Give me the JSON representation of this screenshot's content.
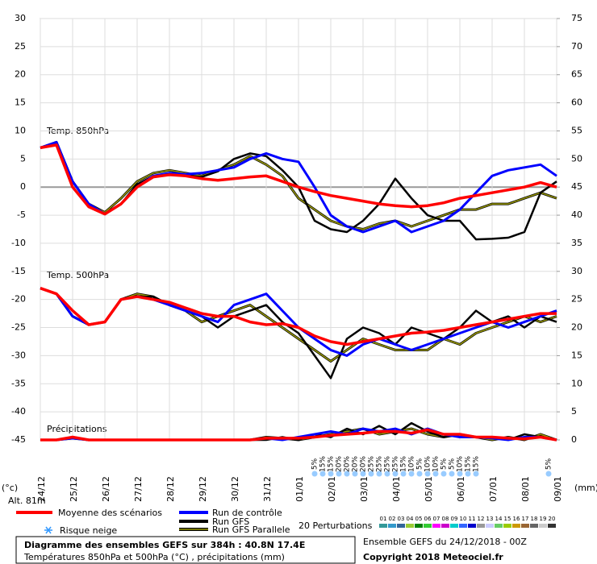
{
  "chart_data": {
    "type": "line",
    "ylim": [
      -45,
      30
    ],
    "yticks": [
      30,
      25,
      20,
      15,
      10,
      5,
      0,
      -5,
      -10,
      -15,
      -20,
      -25,
      -30,
      -35,
      -40,
      -45
    ],
    "y2lim": [
      0,
      75
    ],
    "y2ticks": [
      75,
      70,
      65,
      60,
      55,
      50,
      45,
      40,
      35,
      30,
      25,
      20,
      15,
      10,
      5,
      0
    ],
    "xlim": [
      0,
      384
    ],
    "xticks": [
      {
        "value": 0,
        "label": "24/12"
      },
      {
        "value": 24,
        "label": "25/12"
      },
      {
        "value": 48,
        "label": "26/12"
      },
      {
        "value": 72,
        "label": "27/12"
      },
      {
        "value": 96,
        "label": "28/12"
      },
      {
        "value": 120,
        "label": "29/12"
      },
      {
        "value": 144,
        "label": "30/12"
      },
      {
        "value": 168,
        "label": "31/12"
      },
      {
        "value": 192,
        "label": "01/01"
      },
      {
        "value": 216,
        "label": "02/01"
      },
      {
        "value": 240,
        "label": "03/01"
      },
      {
        "value": 264,
        "label": "04/01"
      },
      {
        "value": 288,
        "label": "05/01"
      },
      {
        "value": 312,
        "label": "06/01"
      },
      {
        "value": 336,
        "label": "07/01"
      },
      {
        "value": 360,
        "label": "08/01"
      },
      {
        "value": 384,
        "label": "09/01"
      }
    ],
    "y_unit": "(°c)",
    "y2_unit": "(mm)",
    "altitude": "Alt. 81m",
    "grid": true,
    "annotations": [
      "Temp. 850hPa",
      "Temp. 500hPa",
      "Précipitations"
    ],
    "x": [
      0,
      12,
      24,
      36,
      48,
      60,
      72,
      84,
      96,
      108,
      120,
      132,
      144,
      156,
      168,
      180,
      192,
      204,
      216,
      228,
      240,
      252,
      264,
      276,
      288,
      300,
      312,
      324,
      336,
      348,
      360,
      372,
      384
    ],
    "series": [
      {
        "name": "Run GFS Parallele",
        "color": "#999900",
        "t850": [
          7,
          8,
          1,
          -3,
          -4.5,
          -2,
          1,
          2.5,
          3,
          2.5,
          2,
          3,
          4,
          5.5,
          4,
          2,
          -2,
          -4,
          -6,
          -7,
          -7.5,
          -6.5,
          -6,
          -7,
          -6,
          -5,
          -4,
          -4,
          -3,
          -3,
          -2,
          -1,
          -2
        ],
        "t500": [
          -18,
          -19,
          -23,
          -24.5,
          -24,
          -20,
          -19,
          -19.5,
          -21,
          -22,
          -24,
          -23,
          -22,
          -21,
          -23,
          -25,
          -27,
          -29,
          -31,
          -29,
          -27,
          -28,
          -29,
          -29,
          -29,
          -27,
          -28,
          -26,
          -25,
          -24,
          -23,
          -24,
          -23
        ],
        "precip": [
          0,
          0,
          0.3,
          0,
          0,
          0,
          0,
          0,
          0,
          0,
          0,
          0,
          0,
          0,
          0.5,
          0.3,
          0,
          0.5,
          1,
          1.5,
          2,
          1,
          1.5,
          2,
          1,
          0.5,
          1,
          0.5,
          0,
          0.5,
          0,
          1,
          0
        ]
      },
      {
        "name": "Run GFS",
        "color": "#000000",
        "t850": [
          7,
          8,
          0,
          -3.5,
          -4.7,
          -3,
          0.5,
          2,
          2.3,
          2,
          1.8,
          2.8,
          5,
          6,
          5.5,
          3,
          0,
          -6,
          -7.5,
          -8,
          -6,
          -3,
          1.5,
          -2,
          -5,
          -6,
          -6,
          -9.3,
          -9.2,
          -9,
          -8,
          -1,
          1
        ],
        "t500": [
          -18,
          -19,
          -23,
          -24.5,
          -24,
          -20,
          -19.5,
          -19.5,
          -21,
          -22,
          -23,
          -25,
          -23,
          -22,
          -21,
          -24,
          -26,
          -30,
          -34,
          -27,
          -25,
          -26,
          -28,
          -25,
          -26,
          -27,
          -25,
          -22,
          -24,
          -23,
          -25,
          -23,
          -24
        ],
        "precip": [
          0,
          0,
          0.5,
          0,
          0,
          0,
          0,
          0,
          0,
          0,
          0,
          0,
          0,
          0,
          0,
          0.5,
          0,
          1,
          0.5,
          2,
          1,
          2.5,
          1,
          3,
          1.5,
          0.5,
          1,
          0.5,
          0.5,
          0,
          1,
          0.5,
          0
        ]
      },
      {
        "name": "Run de contrôle",
        "color": "#0000ff",
        "t850": [
          7,
          8,
          1,
          -3,
          -4.8,
          -3,
          0,
          2,
          2.5,
          2.3,
          2.5,
          3,
          3.5,
          5,
          6,
          5,
          4.5,
          0,
          -5,
          -7,
          -8,
          -7,
          -6,
          -8,
          -7,
          -6,
          -4,
          -1,
          2,
          3,
          3.5,
          4,
          2
        ],
        "t500": [
          -18,
          -19,
          -23,
          -24.5,
          -24,
          -20,
          -19.5,
          -20,
          -21,
          -22,
          -23,
          -24,
          -21,
          -20,
          -19,
          -22,
          -25,
          -27,
          -29,
          -30,
          -28,
          -27,
          -28,
          -29,
          -28,
          -27,
          -26,
          -25,
          -24,
          -25,
          -24,
          -23,
          -22
        ],
        "precip": [
          0,
          0,
          0.3,
          0,
          0,
          0,
          0,
          0,
          0,
          0,
          0,
          0,
          0,
          0,
          0.3,
          0,
          0.5,
          1,
          1.5,
          1,
          2,
          1.5,
          2,
          1,
          2,
          1,
          0.5,
          0.5,
          0.3,
          0,
          0.5,
          0.5,
          0
        ]
      },
      {
        "name": "Moyenne des scénarios",
        "color": "#ff0000",
        "t850": [
          7,
          7.5,
          0,
          -3.5,
          -4.8,
          -3,
          0,
          1.8,
          2.2,
          2,
          1.5,
          1.2,
          1.5,
          1.8,
          2,
          1,
          0,
          -0.8,
          -1.5,
          -2,
          -2.5,
          -3,
          -3.3,
          -3.5,
          -3.3,
          -2.8,
          -2,
          -1.5,
          -1,
          -0.5,
          0,
          0.8,
          0
        ],
        "t500": [
          -18,
          -19,
          -22,
          -24.5,
          -24,
          -20,
          -19.5,
          -20,
          -20.5,
          -21.5,
          -22.5,
          -23,
          -23,
          -24,
          -24.5,
          -24.3,
          -25,
          -26.5,
          -27.5,
          -28,
          -27.5,
          -27,
          -26.5,
          -26,
          -25.8,
          -25.5,
          -25,
          -24.5,
          -24,
          -23.5,
          -23,
          -22.5,
          -22.5
        ],
        "precip": [
          0,
          0,
          0.5,
          0,
          0,
          0,
          0,
          0,
          0,
          0,
          0,
          0,
          0,
          0,
          0.3,
          0.3,
          0.3,
          0.5,
          0.8,
          1,
          1.2,
          1.5,
          1.5,
          1.2,
          1.8,
          1,
          1,
          0.5,
          0.5,
          0.3,
          0.2,
          0.5,
          0
        ]
      }
    ],
    "legend_order": [
      3,
      2,
      1,
      0
    ],
    "snow_risk": {
      "name": "Risque neige",
      "x": [
        204,
        210,
        216,
        222,
        228,
        234,
        240,
        246,
        252,
        258,
        264,
        270,
        276,
        282,
        288,
        294,
        300,
        306,
        312,
        318,
        324,
        378
      ],
      "values": [
        5,
        15,
        15,
        20,
        20,
        20,
        20,
        25,
        25,
        25,
        25,
        15,
        10,
        5,
        10,
        10,
        5,
        5,
        10,
        15,
        15,
        5
      ],
      "value_labels": [
        "5%",
        "15%",
        "15%",
        "20%",
        "20%",
        "20%",
        "20%",
        "25%",
        "25%",
        "25%",
        "25%",
        "15%",
        "10%",
        "5%",
        "10%",
        "10%",
        "5%",
        "5%",
        "10%",
        "15%",
        "15%",
        "5%"
      ]
    },
    "perturbations": {
      "label": "20 Perturbations",
      "numbers": [
        "01",
        "02",
        "03",
        "04",
        "05",
        "06",
        "07",
        "08",
        "09",
        "10",
        "11",
        "12",
        "13",
        "14",
        "15",
        "16",
        "17",
        "18",
        "19",
        "20"
      ],
      "colors": [
        "#339999",
        "#3399cc",
        "#336699",
        "#99cc33",
        "#008000",
        "#33cc33",
        "#ff00ff",
        "#cc00cc",
        "#00cccc",
        "#3366ff",
        "#0000cc",
        "#999999",
        "#ccccff",
        "#66cc66",
        "#99cc00",
        "#cc9900",
        "#996633",
        "#666666",
        "#cccccc",
        "#333333"
      ]
    },
    "footer": {
      "title": "Diagramme des ensembles GEFS sur 384h : 40.8N 17.4E",
      "subtitle": "Températures 850hPa et 500hPa (°C) , précipitations (mm)",
      "run": "Ensemble GEFS du 24/12/2018 - 00Z",
      "copyright": "Copyright 2018 Meteociel.fr"
    }
  }
}
